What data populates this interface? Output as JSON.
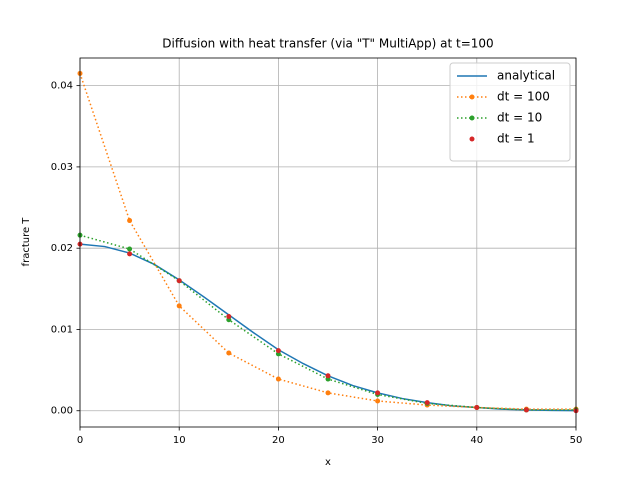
{
  "chart_data": {
    "type": "line",
    "title": "Diffusion with heat transfer (via \"T\" MultiApp) at t=100",
    "xlabel": "x",
    "ylabel": "fracture T",
    "xlim": [
      0,
      50
    ],
    "ylim": [
      -0.002,
      0.0434
    ],
    "xticks": [
      0,
      10,
      20,
      30,
      40,
      50
    ],
    "yticks": [
      {
        "value": 0,
        "label": "0.00"
      },
      0.01,
      0.02,
      0.03,
      0.04
    ],
    "grid": true,
    "legend": "upper right",
    "series": [
      {
        "name": "analytical",
        "color": "#1f77b4",
        "linestyle": "solid",
        "marker": "none",
        "x": [
          0,
          2.5,
          5,
          7.5,
          10,
          12.5,
          15,
          17.5,
          20,
          22.5,
          25,
          27.5,
          30,
          32.5,
          35,
          37.5,
          40,
          42.5,
          45,
          47.5,
          50
        ],
        "values": [
          0.0205,
          0.0202,
          0.0194,
          0.018,
          0.0161,
          0.014,
          0.0118,
          0.0096,
          0.0075,
          0.0058,
          0.0043,
          0.0031,
          0.0022,
          0.0015,
          0.001,
          0.0006,
          0.0004,
          0.0002,
          0.0001,
          5e-05,
          2e-05
        ]
      },
      {
        "name": "dt = 100",
        "color": "#ff7f0e",
        "linestyle": "dotted",
        "marker": "circle",
        "x": [
          0,
          5,
          10,
          15,
          20,
          25,
          30,
          35,
          40,
          45,
          50
        ],
        "values": [
          0.0415,
          0.0234,
          0.0129,
          0.0071,
          0.0039,
          0.0022,
          0.0012,
          0.0007,
          0.0004,
          0.0002,
          0.0002
        ]
      },
      {
        "name": "dt = 10",
        "color": "#2ca02c",
        "linestyle": "dotted",
        "marker": "circle",
        "x": [
          0,
          5,
          10,
          15,
          20,
          25,
          30,
          35,
          40,
          45,
          50
        ],
        "values": [
          0.0216,
          0.0199,
          0.016,
          0.0112,
          0.007,
          0.0039,
          0.002,
          0.0009,
          0.0004,
          0.0001,
          0.0001
        ]
      },
      {
        "name": "dt = 1",
        "color": "#d62728",
        "linestyle": "none",
        "marker": "circle",
        "x": [
          0,
          5,
          10,
          15,
          20,
          25,
          30,
          35,
          40,
          45,
          50
        ],
        "values": [
          0.0205,
          0.0193,
          0.016,
          0.0116,
          0.0074,
          0.0043,
          0.0022,
          0.001,
          0.0004,
          0.0001,
          0
        ]
      }
    ]
  }
}
